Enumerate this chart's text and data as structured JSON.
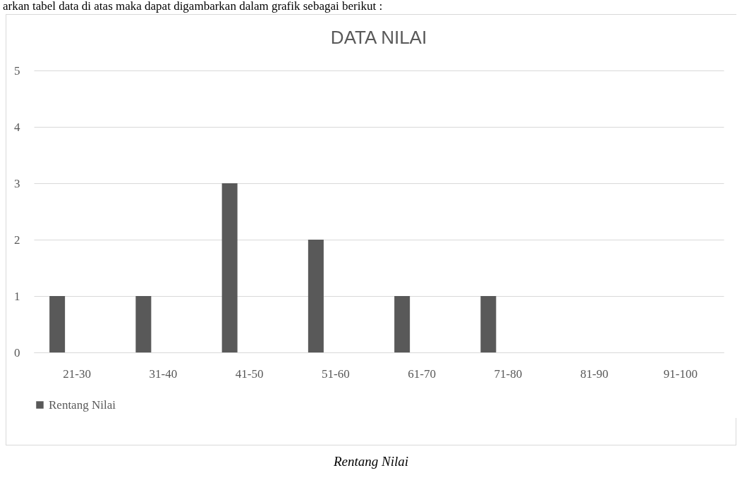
{
  "chart_data": {
    "type": "bar",
    "title": "DATA NILAI",
    "categories": [
      "21-30",
      "31-40",
      "41-50",
      "51-60",
      "61-70",
      "71-80",
      "81-90",
      "91-100"
    ],
    "series": [
      {
        "name": "Rentang Nilai",
        "color": "#595959",
        "values": [
          1,
          1,
          3,
          2,
          1,
          1,
          0,
          0
        ]
      }
    ],
    "ylim": [
      0,
      5
    ],
    "yticks": [
      0,
      1,
      2,
      3,
      4,
      5
    ],
    "grid": "y",
    "legend": "bottom",
    "annotations": [
      "arkan tabel data di atas maka dapat digambarkan dalam grafik sebagai berikut :",
      "Rentang Nilai"
    ]
  }
}
